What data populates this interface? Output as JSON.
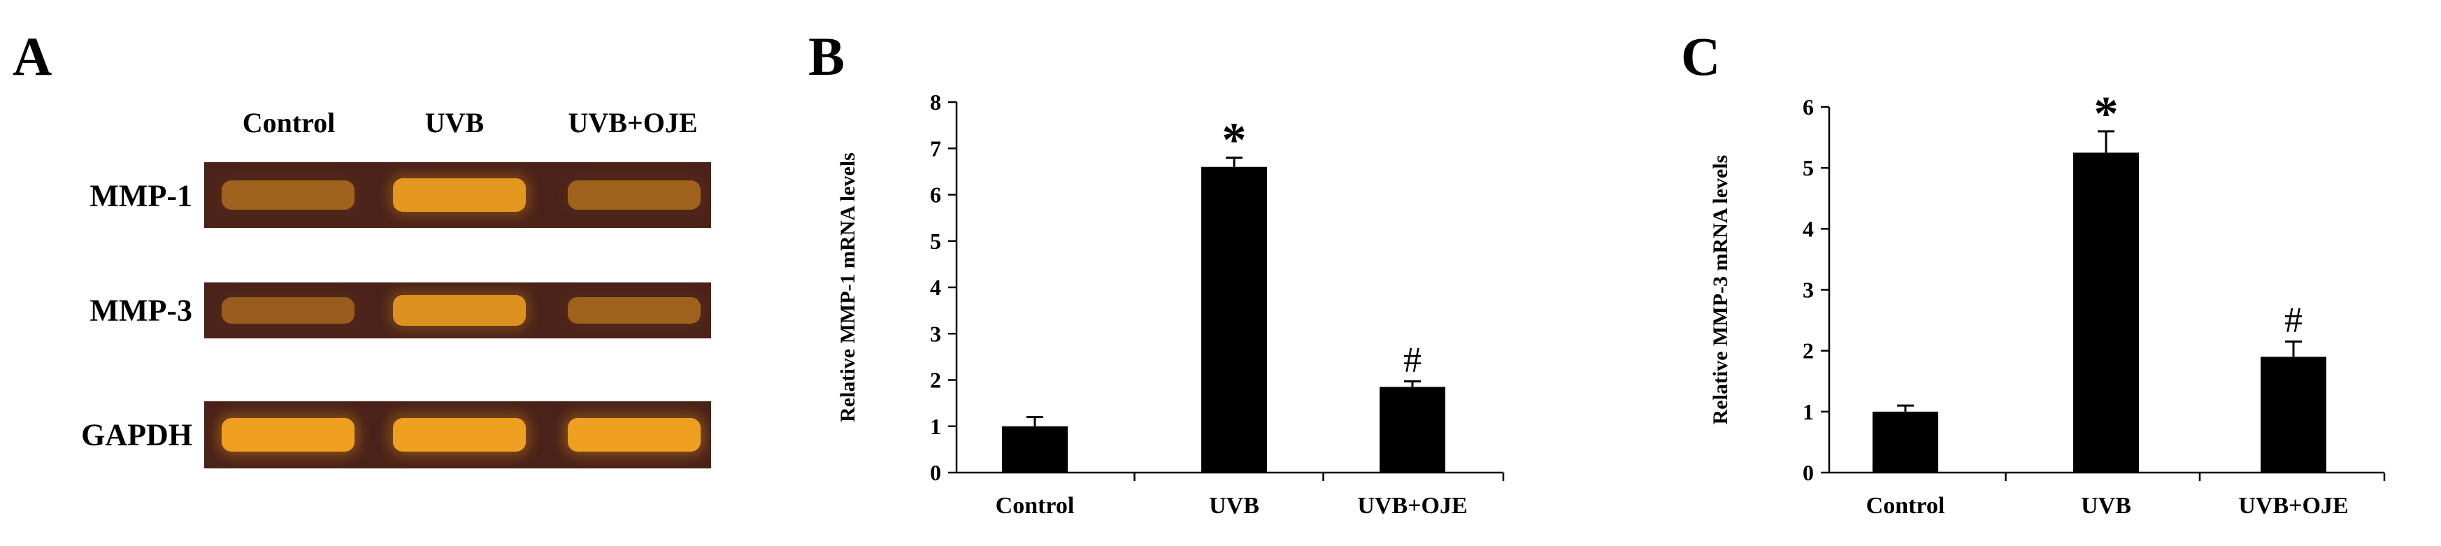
{
  "panels": {
    "a_label": "A",
    "b_label": "B",
    "c_label": "C"
  },
  "gel": {
    "columns": [
      "Control",
      "UVB",
      "UVB+OJE"
    ],
    "rows": [
      {
        "label": "MMP-1",
        "band_intensity": [
          0.35,
          0.9,
          0.35
        ]
      },
      {
        "label": "MMP-3",
        "band_intensity": [
          0.3,
          0.85,
          0.35
        ]
      },
      {
        "label": "GAPDH",
        "band_intensity": [
          1.0,
          1.0,
          1.0
        ]
      }
    ],
    "colors": {
      "background": "#4a2219",
      "band": "#f0a020"
    }
  },
  "chart_data": [
    {
      "type": "bar",
      "categories": [
        "Control",
        "UVB",
        "UVB+OJE"
      ],
      "values": [
        1.0,
        6.6,
        1.85
      ],
      "errors": [
        0.2,
        0.2,
        0.12
      ],
      "annotations": [
        "",
        "*",
        "#"
      ],
      "ylabel": "Relative MMP-1 mRNA levels",
      "ylim": [
        0,
        8
      ],
      "yticks": [
        0,
        1,
        2,
        3,
        4,
        5,
        6,
        7,
        8
      ],
      "bar_color": "#000000",
      "grid": false
    },
    {
      "type": "bar",
      "categories": [
        "Control",
        "UVB",
        "UVB+OJE"
      ],
      "values": [
        1.0,
        5.25,
        1.9
      ],
      "errors": [
        0.1,
        0.35,
        0.25
      ],
      "annotations": [
        "",
        "*",
        "#"
      ],
      "ylabel": "Relative MMP-3 mRNA levels",
      "ylim": [
        0,
        6
      ],
      "yticks": [
        0,
        1,
        2,
        3,
        4,
        5,
        6
      ],
      "bar_color": "#000000",
      "grid": false
    }
  ]
}
